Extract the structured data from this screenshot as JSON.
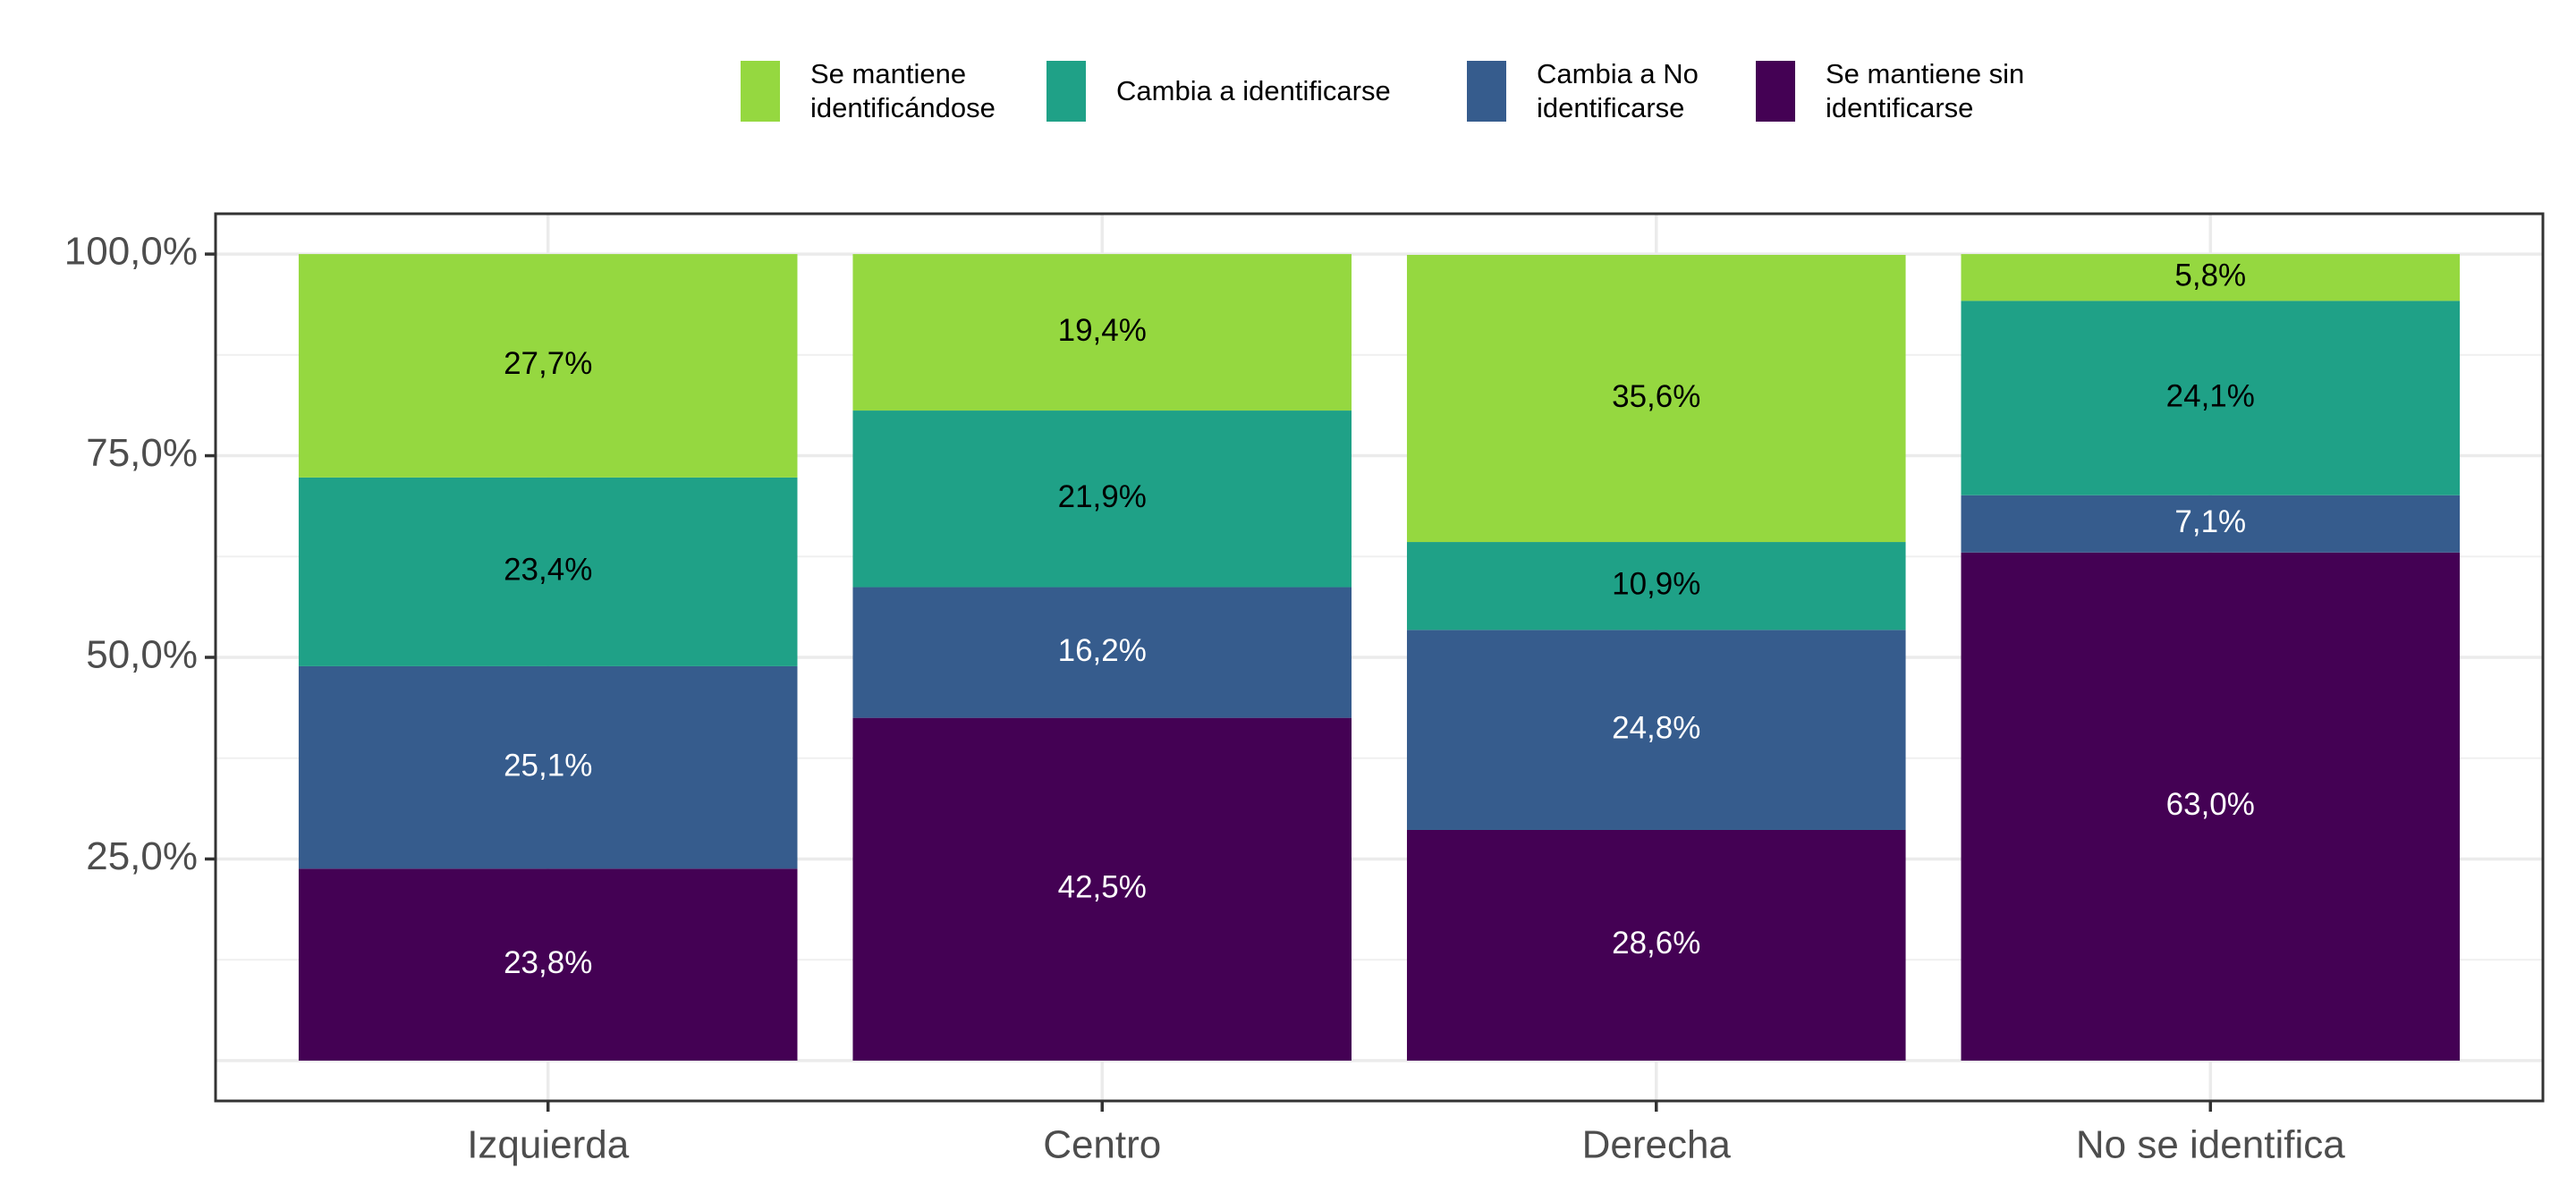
{
  "chart_data": {
    "type": "stacked_bar",
    "categories": [
      "Izquierda",
      "Centro",
      "Derecha",
      "No se identifica"
    ],
    "series": [
      {
        "name": "Se mantiene identificándose",
        "color": "#95D840",
        "values": [
          27.7,
          19.4,
          35.6,
          5.8
        ],
        "value_labels": [
          "27,7%",
          "19,4%",
          "35,6%",
          "5,8%"
        ]
      },
      {
        "name": "Cambia a identificarse",
        "color": "#1FA187",
        "values": [
          23.4,
          21.9,
          10.9,
          24.1
        ],
        "value_labels": [
          "23,4%",
          "21,9%",
          "10,9%",
          "24,1%"
        ]
      },
      {
        "name": "Cambia a No identificarse",
        "color": "#365C8D",
        "values": [
          25.1,
          16.2,
          24.8,
          7.1
        ],
        "value_labels": [
          "25,1%",
          "16,2%",
          "24,8%",
          "7,1%"
        ]
      },
      {
        "name": "Se mantiene sin identificarse",
        "color": "#440154",
        "values": [
          23.8,
          42.5,
          28.6,
          63.0
        ],
        "value_labels": [
          "23,8%",
          "42,5%",
          "28,6%",
          "63,0%"
        ]
      }
    ],
    "ylim": [
      -5,
      105
    ],
    "yticks": [
      {
        "value": 25,
        "label": "25,0%"
      },
      {
        "value": 50,
        "label": "50,0%"
      },
      {
        "value": 75,
        "label": "75,0%"
      },
      {
        "value": 100,
        "label": "100,0%"
      }
    ],
    "grid": true,
    "legend": "top"
  }
}
